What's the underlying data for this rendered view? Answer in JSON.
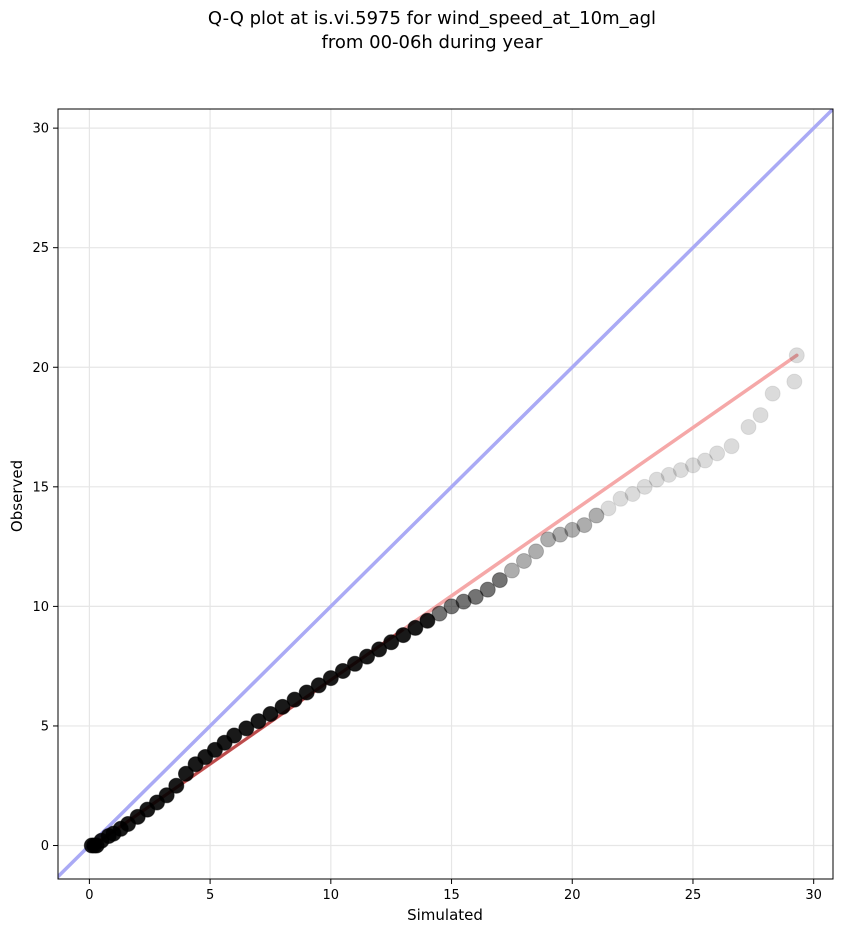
{
  "chart_data": {
    "type": "scatter",
    "title": "Q-Q plot at is.vi.5975 for wind_speed_at_10m_agl",
    "subtitle": "from 00-06h during year",
    "xlabel": "Simulated",
    "ylabel": "Observed",
    "xlim": [
      -1.3,
      30.8
    ],
    "ylim": [
      -1.4,
      30.8
    ],
    "xticks": [
      0,
      5,
      10,
      15,
      20,
      25,
      30
    ],
    "yticks": [
      0,
      5,
      10,
      15,
      20,
      25,
      30
    ],
    "grid": true,
    "legend": "none",
    "colors": {
      "identity_line": "#aaaaf5",
      "fit_line": "#f5a8a8",
      "fit_line_dense": "#8b0000",
      "points": "#000000"
    },
    "reference_lines": [
      {
        "kind": "identity",
        "x": [
          -1.3,
          30.8
        ],
        "y": [
          -1.3,
          30.8
        ]
      },
      {
        "kind": "fit",
        "x": [
          0.3,
          29.3
        ],
        "y": [
          0.1,
          20.5
        ]
      }
    ],
    "quantiles": {
      "x": [
        0.1,
        0.2,
        0.3,
        0.5,
        0.8,
        1.0,
        1.3,
        1.6,
        2.0,
        2.4,
        2.8,
        3.2,
        3.6,
        4.0,
        4.4,
        4.8,
        5.2,
        5.6,
        6.0,
        6.5,
        7.0,
        7.5,
        8.0,
        8.5,
        9.0,
        9.5,
        10.0,
        10.5,
        11.0,
        11.5,
        12.0,
        12.5,
        13.0,
        13.5,
        14.0,
        14.5,
        15.0,
        15.5,
        16.0,
        16.5,
        17.0,
        17.5,
        18.0,
        18.5,
        19.0,
        19.5,
        20.0,
        20.5,
        21.0,
        21.5,
        22.0,
        22.5,
        23.0,
        23.5,
        24.0,
        24.5,
        25.0,
        25.5,
        26.0,
        26.6,
        27.3,
        27.8,
        28.3,
        29.2,
        29.3
      ],
      "y": [
        0.0,
        0.0,
        0.0,
        0.2,
        0.4,
        0.5,
        0.7,
        0.9,
        1.2,
        1.5,
        1.8,
        2.1,
        2.5,
        3.0,
        3.4,
        3.7,
        4.0,
        4.3,
        4.6,
        4.9,
        5.2,
        5.5,
        5.8,
        6.1,
        6.4,
        6.7,
        7.0,
        7.3,
        7.6,
        7.9,
        8.2,
        8.5,
        8.8,
        9.1,
        9.4,
        9.7,
        10.0,
        10.2,
        10.4,
        10.7,
        11.1,
        11.5,
        11.9,
        12.3,
        12.8,
        13.0,
        13.2,
        13.4,
        13.8,
        14.1,
        14.5,
        14.7,
        15.0,
        15.3,
        15.5,
        15.7,
        15.9,
        16.1,
        16.4,
        16.7,
        17.5,
        18.0,
        18.9,
        19.4,
        20.5
      ]
    }
  }
}
